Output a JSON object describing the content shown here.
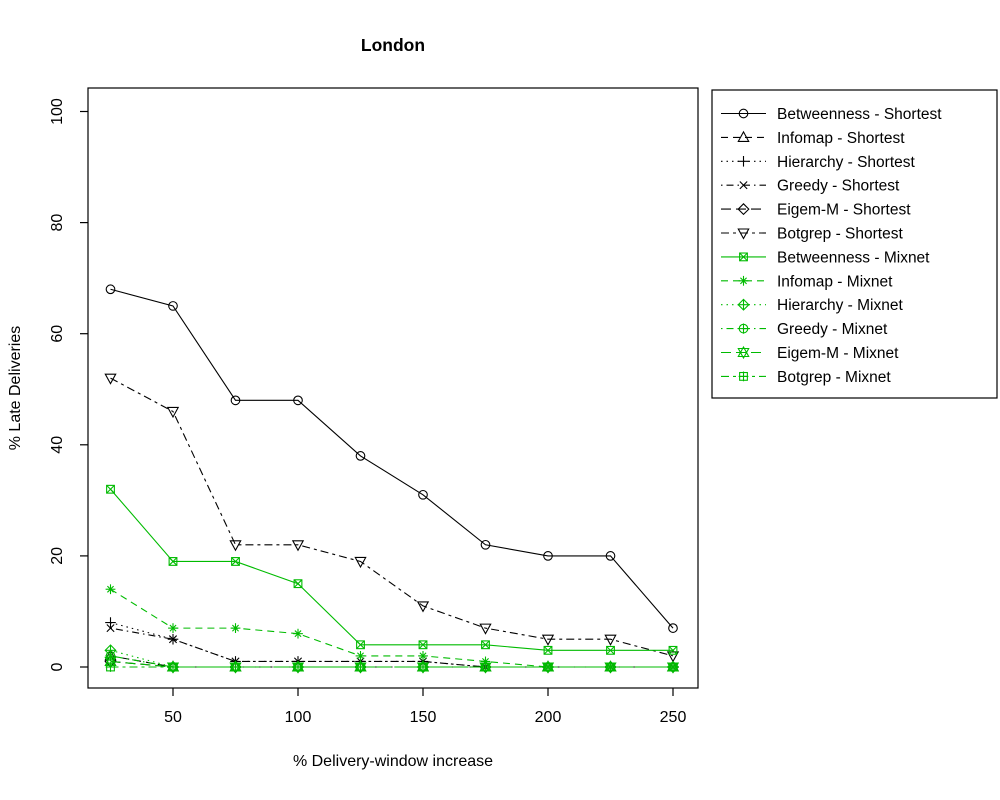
{
  "title": "London",
  "axes": {
    "xlabel": "% Delivery-window increase",
    "ylabel": "% Late Deliveries"
  },
  "chart_data": {
    "type": "line",
    "title": "London",
    "xlabel": "% Delivery-window increase",
    "ylabel": "% Late Deliveries",
    "xlim": [
      25,
      250
    ],
    "ylim": [
      0,
      100
    ],
    "grid": false,
    "legend_position": "outside-right",
    "x_ticks": [
      50,
      100,
      150,
      200,
      250
    ],
    "y_ticks": [
      0,
      20,
      40,
      60,
      80,
      100
    ],
    "x": [
      25,
      50,
      75,
      100,
      125,
      150,
      175,
      200,
      225,
      250
    ],
    "colors": {
      "shortest": "#000000",
      "mixnet": "#00bb00"
    },
    "series": [
      {
        "name": "Betweenness - Shortest",
        "color": "#000000",
        "marker": "circle",
        "linetype": "solid",
        "values": [
          68,
          65,
          48,
          48,
          38,
          31,
          22,
          20,
          20,
          7
        ]
      },
      {
        "name": "Infomap - Shortest",
        "color": "#000000",
        "marker": "triangle-up",
        "linetype": "dashed",
        "values": [
          2,
          0,
          0,
          0,
          0,
          0,
          0,
          0,
          0,
          0
        ]
      },
      {
        "name": "Hierarchy - Shortest",
        "color": "#000000",
        "marker": "plus",
        "linetype": "dotted",
        "values": [
          8,
          5,
          1,
          1,
          1,
          1,
          0,
          0,
          0,
          0
        ]
      },
      {
        "name": "Greedy - Shortest",
        "color": "#000000",
        "marker": "x-cross",
        "linetype": "dotdash",
        "values": [
          7,
          5,
          1,
          1,
          1,
          1,
          0,
          0,
          0,
          0
        ]
      },
      {
        "name": "Eigem-M - Shortest",
        "color": "#000000",
        "marker": "diamond",
        "linetype": "longdash",
        "values": [
          1,
          0,
          0,
          0,
          0,
          0,
          0,
          0,
          0,
          0
        ]
      },
      {
        "name": "Botgrep - Shortest",
        "color": "#000000",
        "marker": "triangle-down",
        "linetype": "twodash",
        "values": [
          52,
          46,
          22,
          22,
          19,
          11,
          7,
          5,
          5,
          2
        ]
      },
      {
        "name": "Betweenness - Mixnet",
        "color": "#00bb00",
        "marker": "square-x",
        "linetype": "solid",
        "values": [
          32,
          19,
          19,
          15,
          4,
          4,
          4,
          3,
          3,
          3
        ]
      },
      {
        "name": "Infomap - Mixnet",
        "color": "#00bb00",
        "marker": "asterisk",
        "linetype": "dashed",
        "values": [
          14,
          7,
          7,
          6,
          2,
          2,
          1,
          0,
          0,
          0
        ]
      },
      {
        "name": "Hierarchy - Mixnet",
        "color": "#00bb00",
        "marker": "diamond-plus",
        "linetype": "dotted",
        "values": [
          3,
          0,
          0,
          0,
          0,
          0,
          0,
          0,
          0,
          0
        ]
      },
      {
        "name": "Greedy - Mixnet",
        "color": "#00bb00",
        "marker": "circle-plus",
        "linetype": "dotdash",
        "values": [
          2,
          0,
          0,
          0,
          0,
          0,
          0,
          0,
          0,
          0
        ]
      },
      {
        "name": "Eigem-M - Mixnet",
        "color": "#00bb00",
        "marker": "star-of-david",
        "linetype": "longdash",
        "values": [
          1,
          0,
          0,
          0,
          0,
          0,
          0,
          0,
          0,
          0
        ]
      },
      {
        "name": "Botgrep - Mixnet",
        "color": "#00bb00",
        "marker": "square-plus",
        "linetype": "twodash",
        "values": [
          0,
          0,
          0,
          0,
          0,
          0,
          0,
          0,
          0,
          0
        ]
      }
    ]
  }
}
